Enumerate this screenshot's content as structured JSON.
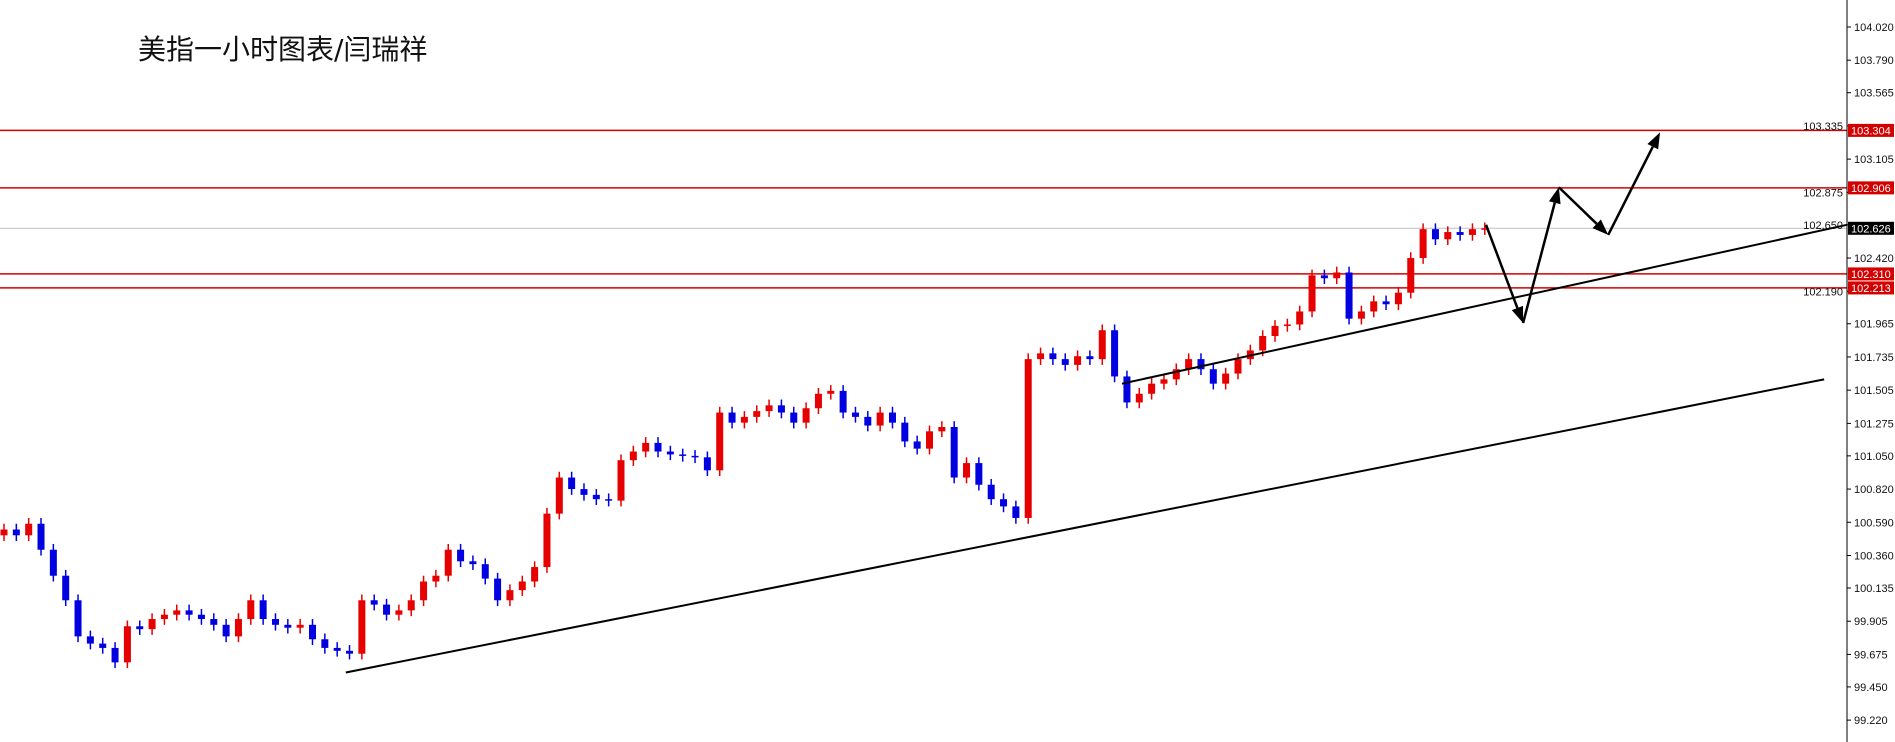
{
  "chart_data": {
    "type": "candlestick",
    "title": "美指一小时图表/闫瑞祥",
    "colors": {
      "up": "#e60000",
      "down": "#0000e0",
      "level": "#d40000",
      "current": "#000000",
      "trendline": "#000000"
    },
    "ylim": [
      99.1,
      104.15
    ],
    "y_ticks": [
      "104.020",
      "103.790",
      "103.565",
      "103.335",
      "103.105",
      "102.875",
      "102.650",
      "102.420",
      "102.190",
      "101.965",
      "101.735",
      "101.505",
      "101.275",
      "101.050",
      "100.820",
      "100.590",
      "100.360",
      "100.135",
      "99.905",
      "99.675",
      "99.450",
      "99.220"
    ],
    "first_open": 100.5,
    "closes": [
      100.54,
      100.5,
      100.58,
      100.4,
      100.22,
      100.05,
      99.8,
      99.75,
      99.72,
      99.62,
      99.87,
      99.85,
      99.92,
      99.95,
      99.98,
      99.95,
      99.92,
      99.88,
      99.8,
      99.92,
      100.05,
      99.92,
      99.88,
      99.86,
      99.88,
      99.78,
      99.72,
      99.7,
      99.68,
      100.05,
      100.02,
      99.95,
      99.98,
      100.05,
      100.18,
      100.22,
      100.4,
      100.32,
      100.3,
      100.2,
      100.05,
      100.12,
      100.18,
      100.28,
      100.65,
      100.9,
      100.82,
      100.78,
      100.75,
      100.74,
      101.02,
      101.08,
      101.14,
      101.08,
      101.06,
      101.05,
      101.04,
      100.95,
      101.35,
      101.28,
      101.32,
      101.36,
      101.4,
      101.35,
      101.28,
      101.38,
      101.48,
      101.5,
      101.35,
      101.32,
      101.26,
      101.35,
      101.28,
      101.15,
      101.1,
      101.22,
      101.25,
      100.9,
      101.0,
      100.85,
      100.75,
      100.7,
      100.62,
      101.72,
      101.76,
      101.72,
      101.68,
      101.74,
      101.72,
      101.92,
      101.6,
      101.42,
      101.48,
      101.55,
      101.58,
      101.65,
      101.72,
      101.65,
      101.55,
      101.62,
      101.72,
      101.78,
      101.88,
      101.95,
      101.96,
      102.05,
      102.3,
      102.28,
      102.32,
      102.0,
      102.05,
      102.12,
      102.1,
      102.18,
      102.42,
      102.62,
      102.55,
      102.6,
      102.58,
      102.62,
      102.626
    ],
    "levels": [
      {
        "price": 103.304,
        "label": "103.304"
      },
      {
        "price": 102.906,
        "label": "102.906"
      },
      {
        "price": 102.31,
        "label": "102.310"
      },
      {
        "price": 102.213,
        "label": "102.213"
      }
    ],
    "current_price": {
      "price": 102.626,
      "label": "102.626"
    },
    "trendlines": [
      {
        "from": [
          27.7,
          99.55
        ],
        "to": [
          147.5,
          101.58
        ]
      },
      {
        "from": [
          90.6,
          101.55
        ],
        "to": [
          150,
          102.65
        ]
      }
    ],
    "projection_path": [
      [
        120.1,
        102.65
      ],
      [
        123.1,
        101.97
      ],
      [
        126.0,
        102.91
      ],
      [
        130.0,
        102.58
      ],
      [
        134.2,
        103.29
      ]
    ]
  }
}
